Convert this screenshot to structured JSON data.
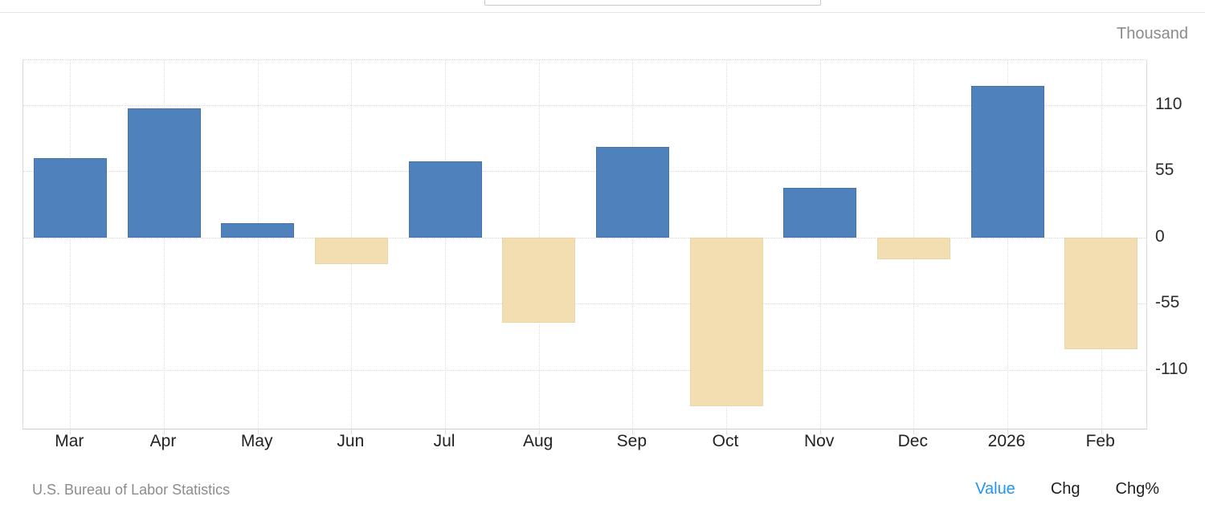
{
  "top_input": {
    "value": ""
  },
  "header": {
    "unit_label": "Thousand"
  },
  "footer": {
    "source": "U.S. Bureau of Labor Statistics",
    "views": [
      {
        "label": "Value",
        "active": true
      },
      {
        "label": "Chg",
        "active": false
      },
      {
        "label": "Chg%",
        "active": false
      }
    ]
  },
  "colors": {
    "positive_bar": "#4f81bd",
    "negative_bar": "#f3deb1",
    "active_link": "#2196f3"
  },
  "chart_data": {
    "type": "bar",
    "title": "",
    "xlabel": "",
    "ylabel": "Thousand",
    "categories": [
      "Mar",
      "Apr",
      "May",
      "Jun",
      "Jul",
      "Aug",
      "Sep",
      "Oct",
      "Nov",
      "Dec",
      "2026",
      "Feb"
    ],
    "values": [
      66,
      107,
      12,
      -22,
      63,
      -71,
      75,
      -140,
      41,
      -18,
      126,
      -93
    ],
    "yticks": [
      110,
      55,
      0,
      -55,
      -110
    ],
    "ylim": [
      -160,
      147
    ],
    "grid": true,
    "legend": "none",
    "bar_colors_rule": "positive=#4f81bd, negative=#f3deb1"
  }
}
